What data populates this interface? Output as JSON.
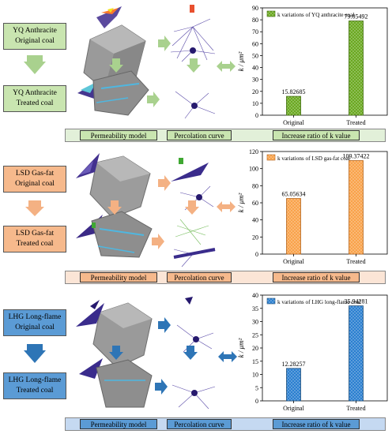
{
  "panels": [
    {
      "key": "yq",
      "original_label": [
        "YQ Anthracite",
        "Original coal"
      ],
      "treated_label": [
        "YQ Anthracite",
        "Treated coal"
      ],
      "tags": [
        "Permeability model",
        "Percolation curve",
        "Increase ratio of k value"
      ],
      "colors": {
        "box": "#c9e5b0",
        "bar_bg": "#e2f0d9",
        "arrow": "#a9d18e",
        "bar_fill": "#6aa820",
        "bar_stroke": "#3e6b0a"
      }
    },
    {
      "key": "lsd",
      "original_label": [
        "LSD Gas-fat",
        "Original coal"
      ],
      "treated_label": [
        "LSD Gas-fat",
        "Treated coal"
      ],
      "tags": [
        "Permeability model",
        "Percolation curve",
        "Increase ratio of k value"
      ],
      "colors": {
        "box": "#f6b98c",
        "bar_bg": "#fbe5d6",
        "arrow": "#f4b183",
        "bar_fill": "#f9a24a",
        "bar_stroke": "#b5651d"
      }
    },
    {
      "key": "lhg",
      "original_label": [
        "LHG Long-flame",
        "Original coal"
      ],
      "treated_label": [
        "LHG Long-flame",
        "Treated coal"
      ],
      "tags": [
        "Permeability model",
        "Percolation curve",
        "Increase ratio of k value"
      ],
      "colors": {
        "box": "#5b9bd5",
        "bar_bg": "#c5d9f1",
        "arrow": "#2e75b6",
        "bar_fill": "#2b7fd0",
        "bar_stroke": "#1f4e79"
      }
    }
  ],
  "chart_data": [
    {
      "type": "bar",
      "legend": "k variations of YQ anthracite coal",
      "categories": [
        "Original",
        "Treated"
      ],
      "values": [
        15.82685,
        79.05492
      ],
      "value_labels": [
        "15.82685",
        "79.05492"
      ],
      "ylabel": "k / μm²",
      "ylim": [
        0,
        90
      ],
      "yticks": [
        "0",
        "10",
        "20",
        "30",
        "40",
        "50",
        "60",
        "70",
        "80",
        "90"
      ]
    },
    {
      "type": "bar",
      "legend": "k variations of LSD gas-fat coal",
      "categories": [
        "Original",
        "Treated"
      ],
      "values": [
        65.05634,
        109.37422
      ],
      "value_labels": [
        "65.05634",
        "109.37422"
      ],
      "ylabel": "k / μm²",
      "ylim": [
        0,
        120
      ],
      "yticks": [
        "0",
        "20",
        "40",
        "60",
        "80",
        "100",
        "120"
      ]
    },
    {
      "type": "bar",
      "legend": "k variations of LHG long-flame coal",
      "categories": [
        "Original",
        "Treated"
      ],
      "values": [
        12.28257,
        35.94281
      ],
      "value_labels": [
        "12.28257",
        "35.94281"
      ],
      "ylabel": "k / μm²",
      "ylim": [
        0,
        40
      ],
      "yticks": [
        "0",
        "5",
        "10",
        "15",
        "20",
        "25",
        "30",
        "35",
        "40"
      ]
    }
  ]
}
